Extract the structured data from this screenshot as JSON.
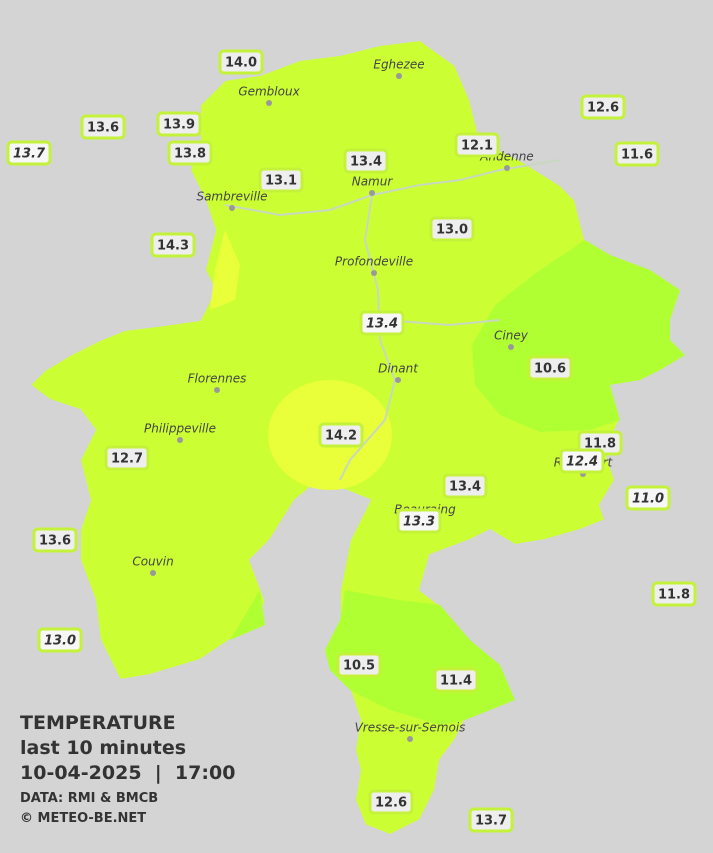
{
  "stations": [
    {
      "label": "14.0",
      "italic": false
    },
    {
      "label": "13.6",
      "italic": false
    },
    {
      "label": "13.9",
      "italic": false
    },
    {
      "label": "13.7",
      "italic": true
    },
    {
      "label": "13.8",
      "italic": false
    },
    {
      "label": "13.4",
      "italic": false
    },
    {
      "label": "12.1",
      "italic": false
    },
    {
      "label": "12.6",
      "italic": false
    },
    {
      "label": "11.6",
      "italic": false
    },
    {
      "label": "13.1",
      "italic": false
    },
    {
      "label": "13.0",
      "italic": false
    },
    {
      "label": "14.3",
      "italic": false
    },
    {
      "label": "13.4",
      "italic": true
    },
    {
      "label": "10.6",
      "italic": false
    },
    {
      "label": "14.2",
      "italic": false
    },
    {
      "label": "11.8",
      "italic": false
    },
    {
      "label": "12.4",
      "italic": true
    },
    {
      "label": "12.7",
      "italic": false
    },
    {
      "label": "13.4",
      "italic": false
    },
    {
      "label": "11.0",
      "italic": true
    },
    {
      "label": "13.3",
      "italic": true
    },
    {
      "label": "13.6",
      "italic": false
    },
    {
      "label": "11.8",
      "italic": false
    },
    {
      "label": "13.0",
      "italic": true
    },
    {
      "label": "10.5",
      "italic": false
    },
    {
      "label": "11.4",
      "italic": false
    },
    {
      "label": "12.6",
      "italic": false
    },
    {
      "label": "13.7",
      "italic": false
    }
  ],
  "cities": [
    "Eghezee",
    "Gembloux",
    "Andenne",
    "Namur",
    "Sambreville",
    "Profondeville",
    "Ciney",
    "Dinant",
    "Florennes",
    "Philippeville",
    "Rochefort",
    "Beauraing",
    "Couvin",
    "Vresse-sur-Semois"
  ],
  "legend": {
    "title": "TEMPERATURE",
    "subtitle": "last 10 minutes",
    "datetime": "10-04-2025  |  17:00",
    "source": "DATA: RMI & BMCB",
    "copyright": "© METEO-BE.NET"
  }
}
